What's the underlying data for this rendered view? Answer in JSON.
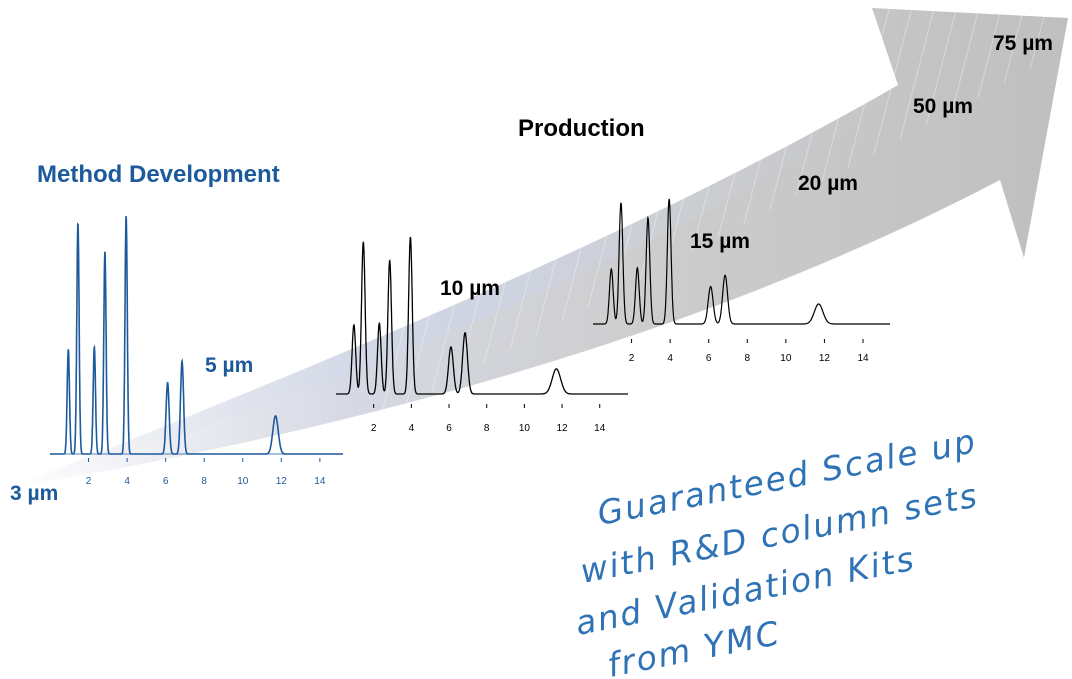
{
  "colors": {
    "blue": "#1d5a9c",
    "handwriting": "#2f73b6",
    "arrow": "#c8c8c8",
    "black": "#000000"
  },
  "headers": {
    "method_development": "Method Development",
    "production": "Production"
  },
  "particle_sizes": [
    "3 µm",
    "5 µm",
    "10 µm",
    "15 µm",
    "20 µm",
    "50 µm",
    "75 µm"
  ],
  "chromatograms": [
    {
      "label": "5 µm",
      "color": "#1d5a9c",
      "ticks": [
        "2",
        "4",
        "6",
        "8",
        "10",
        "12",
        "14"
      ]
    },
    {
      "label": "10 µm",
      "color": "#000000",
      "ticks": [
        "2",
        "4",
        "6",
        "8",
        "10",
        "12",
        "14"
      ]
    },
    {
      "label": "15 µm",
      "color": "#000000",
      "ticks": [
        "2",
        "4",
        "6",
        "8",
        "10",
        "12",
        "14"
      ]
    }
  ],
  "tagline": {
    "lines": [
      "Guaranteed Scale up",
      "with R&D column sets",
      "and Validation Kits",
      "from YMC"
    ]
  }
}
